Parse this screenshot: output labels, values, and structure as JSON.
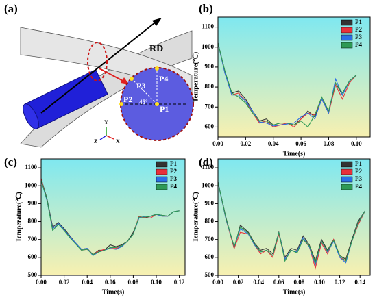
{
  "illustration": {
    "panel": "(a)",
    "rd": "RD",
    "points": [
      "P1",
      "P2",
      "P3",
      "P4"
    ],
    "angle": "45°",
    "axes": [
      "Y",
      "Z",
      "X"
    ]
  },
  "chart_data": [
    {
      "type": "line",
      "panel": "(b)",
      "x_label": "Time(s)",
      "y_label": "Temperature(℃)",
      "x": [
        0,
        0.005,
        0.01,
        0.015,
        0.02,
        0.025,
        0.03,
        0.035,
        0.04,
        0.045,
        0.05,
        0.055,
        0.06,
        0.065,
        0.07,
        0.075,
        0.08,
        0.085,
        0.09,
        0.095,
        0.1
      ],
      "series": [
        {
          "name": "P1",
          "color": "#333333",
          "values": [
            1020,
            880,
            770,
            780,
            740,
            680,
            630,
            640,
            610,
            620,
            620,
            610,
            640,
            680,
            650,
            740,
            680,
            820,
            760,
            830,
            860
          ]
        },
        {
          "name": "P2",
          "color": "#e8303a",
          "values": [
            1020,
            870,
            760,
            770,
            730,
            670,
            620,
            630,
            600,
            610,
            620,
            600,
            640,
            670,
            660,
            740,
            670,
            810,
            740,
            820,
            860
          ]
        },
        {
          "name": "P3",
          "color": "#2a6fe6",
          "values": [
            1020,
            870,
            760,
            760,
            730,
            680,
            625,
            620,
            605,
            610,
            615,
            620,
            650,
            670,
            640,
            740,
            670,
            840,
            760,
            830,
            860
          ]
        },
        {
          "name": "P4",
          "color": "#2e9a55",
          "values": [
            1020,
            880,
            770,
            750,
            720,
            670,
            630,
            630,
            610,
            620,
            620,
            610,
            630,
            600,
            660,
            750,
            680,
            820,
            770,
            830,
            860
          ]
        }
      ],
      "xlim": [
        0,
        0.11
      ],
      "xticks": [
        {
          "value": 0,
          "label": "0.00"
        },
        {
          "value": 0.02,
          "label": "0.02"
        },
        {
          "value": 0.04,
          "label": "0.04"
        },
        {
          "value": 0.06,
          "label": "0.06"
        },
        {
          "value": 0.08,
          "label": "0.08"
        },
        {
          "value": 0.1,
          "label": "0.10"
        }
      ],
      "ylim": [
        550,
        1150
      ],
      "yticks": [
        600,
        700,
        800,
        900,
        1000,
        1100
      ],
      "legend": "upper right"
    },
    {
      "type": "line",
      "panel": "(c)",
      "x_label": "Time(s)",
      "y_label": "Temperature(℃)",
      "x": [
        0,
        0.005,
        0.01,
        0.015,
        0.02,
        0.025,
        0.03,
        0.035,
        0.04,
        0.045,
        0.05,
        0.055,
        0.06,
        0.065,
        0.07,
        0.075,
        0.08,
        0.085,
        0.09,
        0.095,
        0.1,
        0.105,
        0.11,
        0.115,
        0.12
      ],
      "series": [
        {
          "name": "P1",
          "color": "#333333",
          "values": [
            1040,
            930,
            770,
            795,
            760,
            720,
            680,
            645,
            650,
            615,
            640,
            640,
            670,
            660,
            670,
            690,
            740,
            820,
            820,
            830,
            840,
            835,
            830,
            855,
            860
          ]
        },
        {
          "name": "P2",
          "color": "#e8303a",
          "values": [
            1040,
            920,
            760,
            790,
            750,
            715,
            680,
            640,
            645,
            615,
            635,
            645,
            650,
            650,
            660,
            690,
            730,
            830,
            820,
            820,
            840,
            830,
            830,
            855,
            860
          ]
        },
        {
          "name": "P3",
          "color": "#2a6fe6",
          "values": [
            1030,
            920,
            760,
            790,
            755,
            715,
            680,
            645,
            650,
            610,
            630,
            640,
            650,
            645,
            660,
            690,
            730,
            820,
            830,
            830,
            840,
            830,
            830,
            855,
            860
          ]
        },
        {
          "name": "P4",
          "color": "#2e9a55",
          "values": [
            1030,
            925,
            750,
            785,
            750,
            710,
            675,
            640,
            645,
            615,
            630,
            640,
            655,
            655,
            665,
            690,
            730,
            825,
            825,
            830,
            840,
            835,
            830,
            855,
            860
          ]
        }
      ],
      "xlim": [
        0,
        0.125
      ],
      "xticks": [
        {
          "value": 0,
          "label": "0.00"
        },
        {
          "value": 0.02,
          "label": "0.02"
        },
        {
          "value": 0.04,
          "label": "0.04"
        },
        {
          "value": 0.06,
          "label": "0.06"
        },
        {
          "value": 0.08,
          "label": "0.08"
        },
        {
          "value": 0.1,
          "label": "0.10"
        },
        {
          "value": 0.12,
          "label": "0.12"
        }
      ],
      "ylim": [
        500,
        1150
      ],
      "yticks": [
        500,
        600,
        700,
        800,
        900,
        1000,
        1100
      ],
      "legend": "upper right"
    },
    {
      "type": "line",
      "panel": "(d)",
      "x_label": "Time(s)",
      "y_label": "Temperature(℃)",
      "x": [
        0,
        0.008,
        0.016,
        0.022,
        0.03,
        0.036,
        0.042,
        0.048,
        0.054,
        0.06,
        0.066,
        0.072,
        0.078,
        0.084,
        0.09,
        0.096,
        0.102,
        0.108,
        0.114,
        0.12,
        0.126,
        0.132,
        0.138,
        0.145
      ],
      "series": [
        {
          "name": "P1",
          "color": "#333333",
          "values": [
            1020,
            820,
            650,
            780,
            740,
            680,
            640,
            650,
            620,
            740,
            600,
            650,
            640,
            720,
            670,
            580,
            700,
            640,
            700,
            610,
            590,
            700,
            800,
            860
          ]
        },
        {
          "name": "P2",
          "color": "#e8303a",
          "values": [
            1020,
            810,
            650,
            740,
            730,
            670,
            620,
            640,
            600,
            730,
            590,
            640,
            630,
            700,
            660,
            540,
            680,
            620,
            700,
            600,
            580,
            690,
            780,
            860
          ]
        },
        {
          "name": "P3",
          "color": "#2a6fe6",
          "values": [
            1020,
            810,
            660,
            760,
            730,
            670,
            630,
            640,
            610,
            740,
            590,
            640,
            630,
            710,
            660,
            560,
            690,
            630,
            690,
            600,
            570,
            690,
            790,
            860
          ]
        },
        {
          "name": "P4",
          "color": "#2e9a55",
          "values": [
            1020,
            815,
            660,
            770,
            735,
            675,
            630,
            640,
            610,
            740,
            580,
            640,
            625,
            700,
            665,
            570,
            690,
            635,
            695,
            610,
            580,
            690,
            790,
            860
          ]
        }
      ],
      "xlim": [
        0,
        0.15
      ],
      "xticks": [
        {
          "value": 0,
          "label": "0.00"
        },
        {
          "value": 0.02,
          "label": "0.02"
        },
        {
          "value": 0.04,
          "label": "0.04"
        },
        {
          "value": 0.06,
          "label": "0.06"
        },
        {
          "value": 0.08,
          "label": "0.08"
        },
        {
          "value": 0.1,
          "label": "0.10"
        },
        {
          "value": 0.12,
          "label": "0.12"
        },
        {
          "value": 0.14,
          "label": "0.14"
        }
      ],
      "ylim": [
        500,
        1150
      ],
      "yticks": [
        500,
        600,
        700,
        800,
        900,
        1000,
        1100
      ],
      "legend": "upper right"
    }
  ]
}
